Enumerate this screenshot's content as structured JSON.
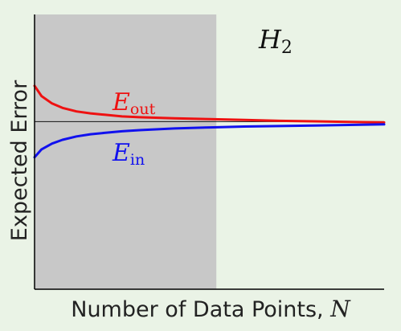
{
  "chart_data": {
    "type": "line",
    "title": "H_2",
    "title_script": "H",
    "title_subscript": "2",
    "xlabel": "Number of Data Points, ",
    "xlabel_var": "N",
    "ylabel": "Expected Error",
    "xlim": [
      0,
      100
    ],
    "ylim": [
      0,
      1
    ],
    "shaded_region": {
      "x": [
        0,
        52
      ],
      "color": "#c8c8c8"
    },
    "asymptote": {
      "y": 0.61,
      "color": "#111111"
    },
    "series": [
      {
        "name": "E_out",
        "label_main": "E",
        "label_sub": "out",
        "color": "#ee1111",
        "x": [
          0,
          2,
          5,
          8,
          12,
          16,
          20,
          25,
          30,
          40,
          50,
          60,
          70,
          80,
          90,
          100
        ],
        "y": [
          0.74,
          0.703,
          0.676,
          0.66,
          0.647,
          0.64,
          0.635,
          0.629,
          0.626,
          0.622,
          0.619,
          0.616,
          0.613,
          0.611,
          0.609,
          0.607
        ]
      },
      {
        "name": "E_in",
        "label_main": "E",
        "label_sub": "in",
        "color": "#1111ee",
        "x": [
          0,
          2,
          5,
          8,
          12,
          16,
          20,
          25,
          30,
          40,
          50,
          60,
          70,
          80,
          90,
          100
        ],
        "y": [
          0.48,
          0.509,
          0.53,
          0.544,
          0.556,
          0.564,
          0.569,
          0.575,
          0.579,
          0.585,
          0.589,
          0.592,
          0.594,
          0.596,
          0.598,
          0.6
        ]
      }
    ]
  }
}
